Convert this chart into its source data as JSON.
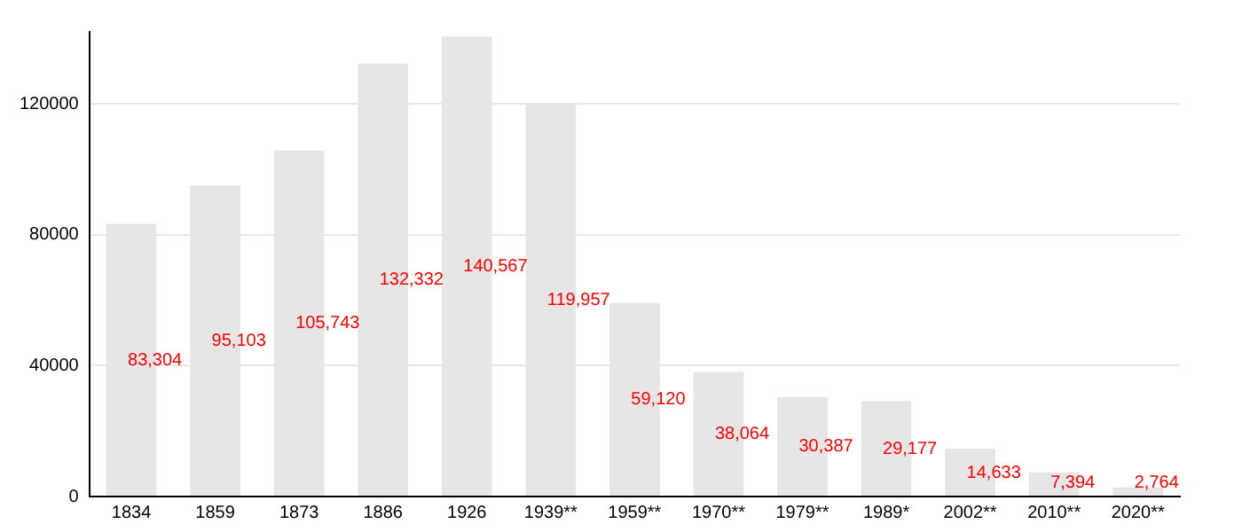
{
  "chart_data": {
    "type": "bar",
    "categories": [
      "1834",
      "1859",
      "1873",
      "1886",
      "1926",
      "1939**",
      "1959**",
      "1970**",
      "1979**",
      "1989*",
      "2002**",
      "2010**",
      "2020**"
    ],
    "values": [
      83304,
      95103,
      105743,
      132332,
      140567,
      119957,
      59120,
      38064,
      30387,
      29177,
      14633,
      7394,
      2764
    ],
    "color": "#e6e6e6",
    "ylim": [
      0,
      142000
    ],
    "yticks": [
      0,
      40000,
      80000,
      120000
    ],
    "grid": "y",
    "value_labels": [
      "83,304",
      "95,103",
      "105,743",
      "132,332",
      "140,567",
      "119,957",
      "59,120",
      "38,064",
      "30,387",
      "29,177",
      "14,633",
      "7,394",
      "2,764"
    ]
  }
}
